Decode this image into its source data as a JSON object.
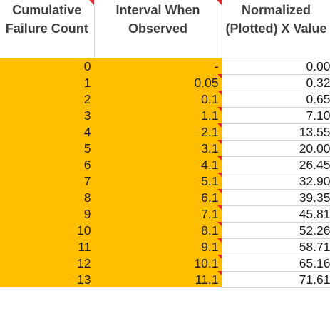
{
  "headers": [
    "Cumulative Failure Count",
    "Interval When Observed",
    "Normalized (Plotted) X Value"
  ],
  "colors": {
    "highlight": "#ffbf00",
    "header_text": "#404040",
    "comment_marker": "#e8262b",
    "gridline": "#d4d4d4"
  },
  "rows": [
    {
      "count": "0",
      "interval": "-",
      "x": "0.00"
    },
    {
      "count": "1",
      "interval": "0.05",
      "x": "0.32"
    },
    {
      "count": "2",
      "interval": "0.1",
      "x": "0.65"
    },
    {
      "count": "3",
      "interval": "1.1",
      "x": "7.10"
    },
    {
      "count": "4",
      "interval": "2.1",
      "x": "13.55"
    },
    {
      "count": "5",
      "interval": "3.1",
      "x": "20.00"
    },
    {
      "count": "6",
      "interval": "4.1",
      "x": "26.45"
    },
    {
      "count": "7",
      "interval": "5.1",
      "x": "32.90"
    },
    {
      "count": "8",
      "interval": "6.1",
      "x": "39.35"
    },
    {
      "count": "9",
      "interval": "7.1",
      "x": "45.81"
    },
    {
      "count": "10",
      "interval": "8.1",
      "x": "52.26"
    },
    {
      "count": "11",
      "interval": "9.1",
      "x": "58.71"
    },
    {
      "count": "12",
      "interval": "10.1",
      "x": "65.16"
    },
    {
      "count": "13",
      "interval": "11.1",
      "x": "71.61"
    }
  ]
}
